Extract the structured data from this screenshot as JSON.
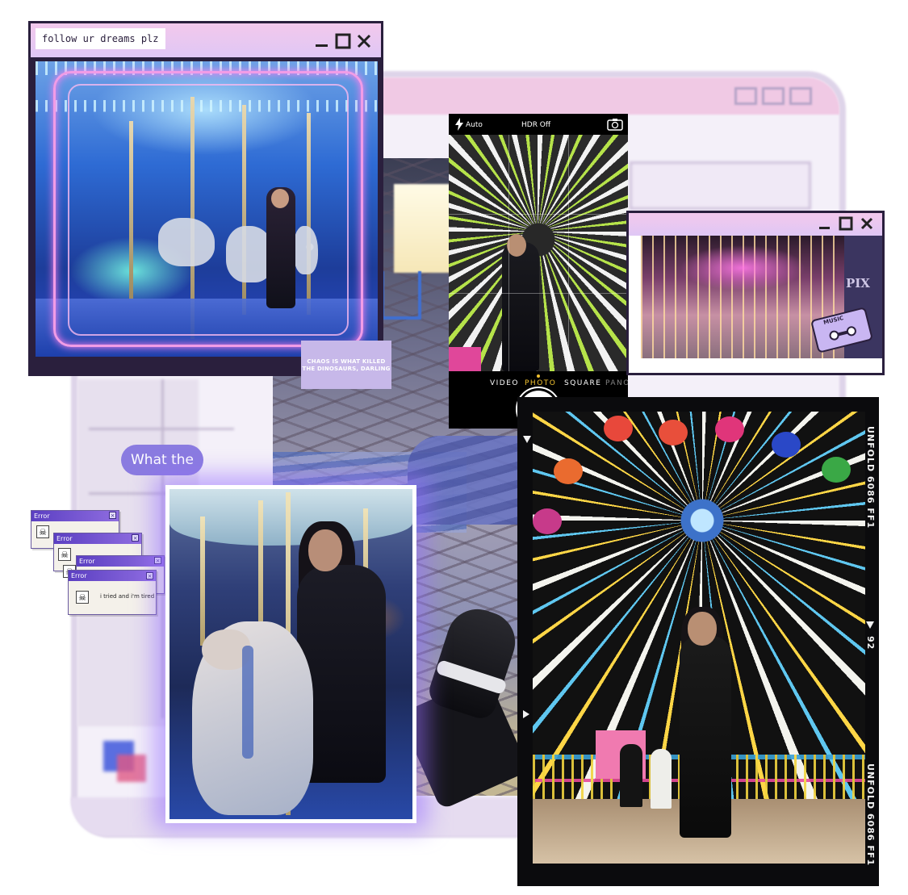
{
  "window_main": {
    "title": "follow ur dreams plz",
    "minimize_icon": "minimize-icon",
    "maximize_icon": "maximize-icon",
    "close_icon": "close-icon"
  },
  "sticker": {
    "text": "CHAOS IS WHAT KILLED THE DINOSAURS, DARLING"
  },
  "camera": {
    "flash_label": "Auto",
    "hdr_label": "HDR Off",
    "modes": [
      "VIDEO",
      "PHOTO",
      "SQUARE",
      "PANO"
    ],
    "active_mode": "PHOTO",
    "accent_color": "#f2c230"
  },
  "window_secondary": {
    "side_text": "PIX",
    "cassette_label": "MUSIC"
  },
  "chat_bubble": {
    "text": "What the"
  },
  "error_dialogs": [
    {
      "title": "Error"
    },
    {
      "title": "Error"
    },
    {
      "title": "Error"
    },
    {
      "title": "Error",
      "message": "i tried and i'm tired"
    }
  ],
  "film_frame": {
    "edge_text_top": "UNFOLD 6086 FF1",
    "frame_number": "92",
    "edge_text_bottom": "UNFOLD 6086 FF1"
  },
  "colors": {
    "window_titlebar": "#f3c8ec",
    "window_border": "#2a1f3d",
    "bubble": "#8a7be0",
    "error_titlebar": "#5b3fc2"
  }
}
